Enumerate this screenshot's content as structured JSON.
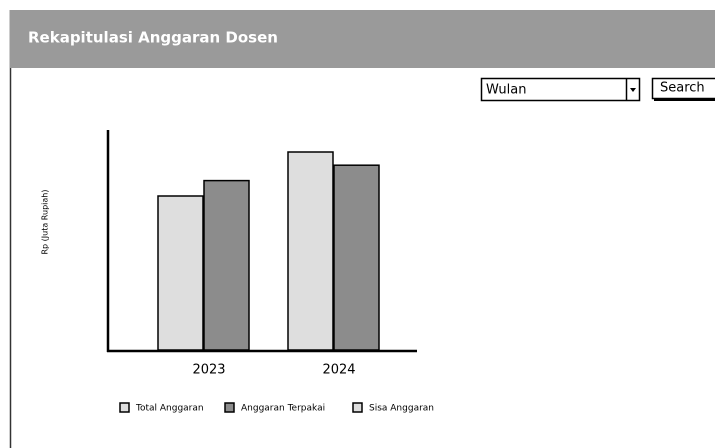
{
  "header": {
    "title": "Rekapitulasi Anggaran Dosen"
  },
  "filter": {
    "selected": "Wulan",
    "button": "Search"
  },
  "chart_data": {
    "type": "bar",
    "y_label": "Rp (Juta Rupiah)",
    "categories": [
      "2023",
      "2024"
    ],
    "series": [
      {
        "name": "Total Anggaran",
        "color": "#dedede",
        "values": [
          70,
          90
        ]
      },
      {
        "name": "Anggaran Terpakai",
        "color": "#8c8c8c",
        "values": [
          77,
          84
        ]
      },
      {
        "name": "Sisa Anggaran",
        "color": "#dedede",
        "values": [
          null,
          null
        ]
      }
    ],
    "ylim": [
      0,
      100
    ]
  }
}
